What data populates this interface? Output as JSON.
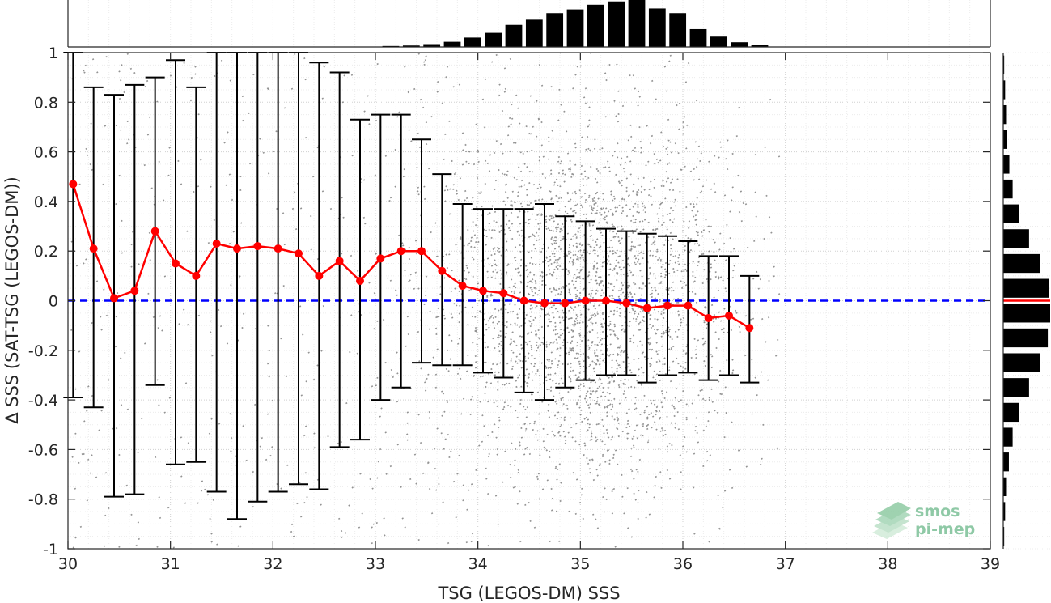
{
  "chart_data": {
    "type": "scatter",
    "xlabel": "TSG (LEGOS-DM) SSS",
    "ylabel": "Δ SSS (SAT-TSG (LEGOS-DM))",
    "xlim": [
      30,
      39
    ],
    "ylim": [
      -1,
      1
    ],
    "x_ticks": [
      "30",
      "31",
      "32",
      "33",
      "34",
      "35",
      "36",
      "37",
      "38",
      "39"
    ],
    "y_ticks": [
      "1",
      "0.8",
      "0.6",
      "0.4",
      "0.2",
      "0",
      "-0.2",
      "-0.4",
      "-0.6",
      "-0.8",
      "-1"
    ],
    "grid": "on",
    "zero_line": 0,
    "colors": {
      "scatter": "#808080",
      "mean": "#ff0000",
      "errorbar": "#000000",
      "zero_line": "#0000ff",
      "hist": "#000000"
    },
    "binned_stats": [
      {
        "x": 30.05,
        "mean": 0.47,
        "lo": -0.39,
        "hi": 1.0
      },
      {
        "x": 30.25,
        "mean": 0.21,
        "lo": -0.43,
        "hi": 0.86
      },
      {
        "x": 30.45,
        "mean": 0.01,
        "lo": -0.79,
        "hi": 0.83
      },
      {
        "x": 30.65,
        "mean": 0.04,
        "lo": -0.78,
        "hi": 0.87
      },
      {
        "x": 30.85,
        "mean": 0.28,
        "lo": -0.34,
        "hi": 0.9
      },
      {
        "x": 31.05,
        "mean": 0.15,
        "lo": -0.66,
        "hi": 0.97
      },
      {
        "x": 31.25,
        "mean": 0.1,
        "lo": -0.65,
        "hi": 0.86
      },
      {
        "x": 31.45,
        "mean": 0.23,
        "lo": -0.77,
        "hi": 1.0
      },
      {
        "x": 31.65,
        "mean": 0.21,
        "lo": -0.88,
        "hi": 1.0
      },
      {
        "x": 31.85,
        "mean": 0.22,
        "lo": -0.81,
        "hi": 1.0
      },
      {
        "x": 32.05,
        "mean": 0.21,
        "lo": -0.77,
        "hi": 1.0
      },
      {
        "x": 32.25,
        "mean": 0.19,
        "lo": -0.74,
        "hi": 1.0
      },
      {
        "x": 32.45,
        "mean": 0.1,
        "lo": -0.76,
        "hi": 0.96
      },
      {
        "x": 32.65,
        "mean": 0.16,
        "lo": -0.59,
        "hi": 0.92
      },
      {
        "x": 32.85,
        "mean": 0.08,
        "lo": -0.56,
        "hi": 0.73
      },
      {
        "x": 33.05,
        "mean": 0.17,
        "lo": -0.4,
        "hi": 0.75
      },
      {
        "x": 33.25,
        "mean": 0.2,
        "lo": -0.35,
        "hi": 0.75
      },
      {
        "x": 33.45,
        "mean": 0.2,
        "lo": -0.25,
        "hi": 0.65
      },
      {
        "x": 33.65,
        "mean": 0.12,
        "lo": -0.26,
        "hi": 0.51
      },
      {
        "x": 33.85,
        "mean": 0.06,
        "lo": -0.26,
        "hi": 0.39
      },
      {
        "x": 34.05,
        "mean": 0.04,
        "lo": -0.29,
        "hi": 0.37
      },
      {
        "x": 34.25,
        "mean": 0.03,
        "lo": -0.31,
        "hi": 0.37
      },
      {
        "x": 34.45,
        "mean": 0.0,
        "lo": -0.37,
        "hi": 0.37
      },
      {
        "x": 34.65,
        "mean": -0.01,
        "lo": -0.4,
        "hi": 0.39
      },
      {
        "x": 34.85,
        "mean": -0.01,
        "lo": -0.35,
        "hi": 0.34
      },
      {
        "x": 35.05,
        "mean": 0.0,
        "lo": -0.32,
        "hi": 0.32
      },
      {
        "x": 35.25,
        "mean": 0.0,
        "lo": -0.3,
        "hi": 0.29
      },
      {
        "x": 35.45,
        "mean": -0.01,
        "lo": -0.3,
        "hi": 0.28
      },
      {
        "x": 35.65,
        "mean": -0.03,
        "lo": -0.33,
        "hi": 0.27
      },
      {
        "x": 35.85,
        "mean": -0.02,
        "lo": -0.3,
        "hi": 0.26
      },
      {
        "x": 36.05,
        "mean": -0.02,
        "lo": -0.29,
        "hi": 0.24
      },
      {
        "x": 36.25,
        "mean": -0.07,
        "lo": -0.32,
        "hi": 0.18
      },
      {
        "x": 36.45,
        "mean": -0.06,
        "lo": -0.3,
        "hi": 0.18
      },
      {
        "x": 36.65,
        "mean": -0.11,
        "lo": -0.33,
        "hi": 0.1
      }
    ],
    "top_histogram": {
      "bin_centers": [
        33.15,
        33.35,
        33.55,
        33.75,
        33.95,
        34.15,
        34.35,
        34.55,
        34.75,
        34.95,
        35.15,
        35.35,
        35.55,
        35.75,
        35.95,
        36.15,
        36.35,
        36.55,
        36.75
      ],
      "relative_heights": [
        0.02,
        0.03,
        0.06,
        0.11,
        0.2,
        0.3,
        0.47,
        0.58,
        0.72,
        0.8,
        0.9,
        0.97,
        1.0,
        0.82,
        0.72,
        0.38,
        0.22,
        0.1,
        0.04
      ]
    },
    "right_histogram": {
      "bin_centers": [
        0.95,
        0.85,
        0.75,
        0.65,
        0.55,
        0.45,
        0.35,
        0.25,
        0.15,
        0.05,
        -0.05,
        -0.15,
        -0.25,
        -0.35,
        -0.45,
        -0.55,
        -0.65,
        -0.75,
        -0.85,
        -0.95
      ],
      "relative_heights": [
        0.02,
        0.04,
        0.06,
        0.08,
        0.13,
        0.2,
        0.33,
        0.55,
        0.78,
        0.97,
        1.0,
        0.95,
        0.78,
        0.55,
        0.33,
        0.2,
        0.12,
        0.06,
        0.04,
        0.02
      ]
    }
  },
  "watermark": {
    "line1": "smos",
    "line2": "pi-mep"
  }
}
